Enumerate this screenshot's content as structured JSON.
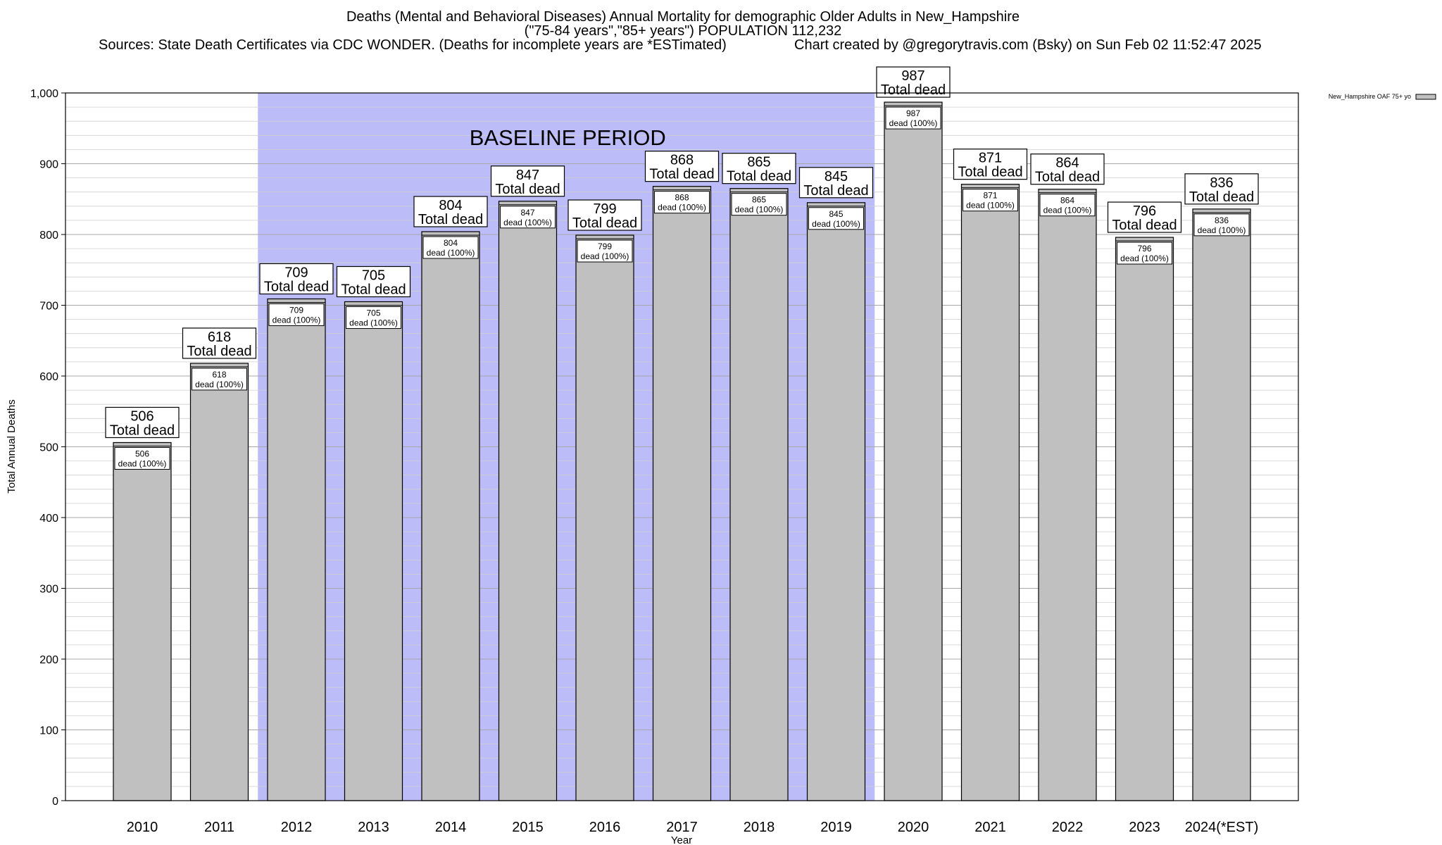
{
  "header": {
    "title": "Deaths (Mental and Behavioral Diseases) Annual Mortality for demographic Older Adults in New_Hampshire",
    "subtitle": "(\"75-84 years\",\"85+ years\") POPULATION 112,232",
    "sources": "Sources: State Death Certificates via CDC WONDER. (Deaths for incomplete years are *ESTimated)",
    "credit": "Chart created by @gregorytravis.com (Bsky) on Sun Feb 02 11:52:47 2025"
  },
  "chart_data": {
    "type": "bar",
    "categories": [
      "2010",
      "2011",
      "2012",
      "2013",
      "2014",
      "2015",
      "2016",
      "2017",
      "2018",
      "2019",
      "2020",
      "2021",
      "2022",
      "2023",
      "2024(*EST)"
    ],
    "series": [
      {
        "name": "New_Hampshire OAF 75+ yo",
        "values": [
          506,
          618,
          709,
          705,
          804,
          847,
          799,
          868,
          865,
          845,
          987,
          871,
          864,
          796,
          836
        ]
      }
    ],
    "xlabel": "Year",
    "ylabel": "Total Annual Deaths",
    "ylim": [
      0,
      1000
    ],
    "yticks": [
      0,
      100,
      200,
      300,
      400,
      500,
      600,
      700,
      800,
      900,
      1000
    ],
    "ytick_labels": [
      "0",
      "100",
      "200",
      "300",
      "400",
      "500",
      "600",
      "700",
      "800",
      "900",
      "1,000"
    ],
    "grid": true,
    "legend_position": "top-right",
    "bar_label_total": "Total dead",
    "bar_label_inner": "dead (100%)",
    "baseline": {
      "label": "BASELINE PERIOD",
      "start": "2012",
      "end": "2019"
    },
    "colors": {
      "bar": "#c0c0c0",
      "baseline": "#bcbcf8"
    }
  }
}
